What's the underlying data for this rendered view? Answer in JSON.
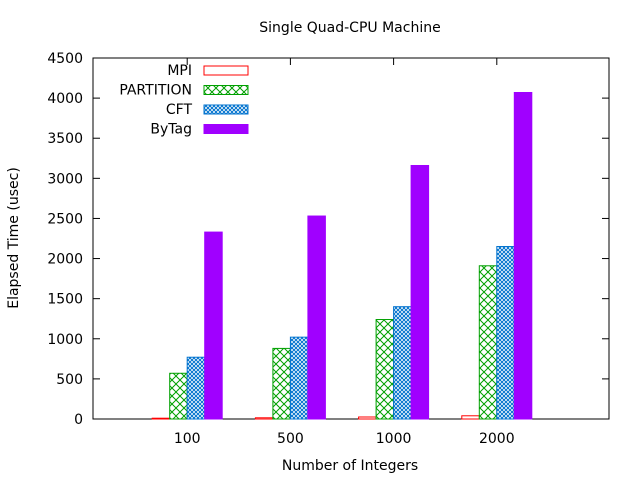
{
  "chart_data": {
    "type": "bar",
    "title": "Single Quad-CPU Machine",
    "xlabel": "Number of Integers",
    "ylabel": "Elapsed Time (usec)",
    "categories": [
      "100",
      "500",
      "1000",
      "2000"
    ],
    "ylim": [
      0,
      4500
    ],
    "yticks": [
      "0",
      "500",
      "1000",
      "1500",
      "2000",
      "2500",
      "3000",
      "3500",
      "4000",
      "4500"
    ],
    "legend_position": "top-left",
    "grid": false,
    "series": [
      {
        "name": "MPI",
        "values": [
          10,
          15,
          25,
          40
        ],
        "color": "#ff0000",
        "pattern": "none"
      },
      {
        "name": "PARTITION",
        "values": [
          570,
          880,
          1240,
          1910
        ],
        "color": "#00a000",
        "pattern": "crosshatch"
      },
      {
        "name": "CFT",
        "values": [
          770,
          1020,
          1400,
          2150
        ],
        "color": "#0072ce",
        "pattern": "crosshatch-dense"
      },
      {
        "name": "ByTag",
        "values": [
          2330,
          2530,
          3160,
          4070
        ],
        "color": "#a000ff",
        "pattern": "solid"
      }
    ]
  }
}
